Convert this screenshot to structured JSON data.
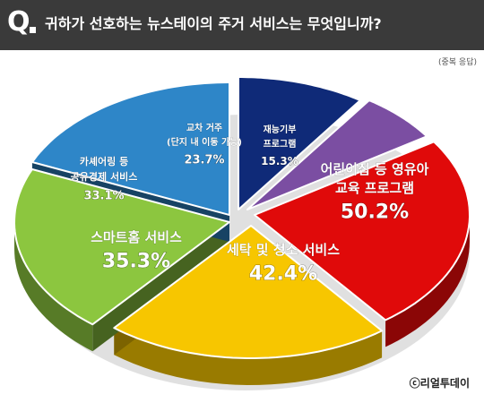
{
  "header": {
    "q_mark": "Q",
    "question": "귀하가 선호하는 뉴스테이의 주거 서비스는 무엇입니까?",
    "note": "(중복 응답)"
  },
  "credit": "ⓒ리얼투데이",
  "chart_data": {
    "type": "pie",
    "title": "귀하가 선호하는 뉴스테이의 주거 서비스는 무엇입니까?",
    "note": "(중복 응답)",
    "slices": [
      {
        "label": "교차 거주 (단지 내 이동 가능)",
        "value": 23.7,
        "value_label": "23.7%",
        "color": "#0f2a78",
        "label_color": "#ffffff"
      },
      {
        "label": "재능기부 프로그램",
        "value": 15.3,
        "value_label": "15.3%",
        "color": "#7b4ea2",
        "label_color": "#ffffff"
      },
      {
        "label": "어린이집 등 영유아 교육 프로그램",
        "value": 50.2,
        "value_label": "50.2%",
        "color": "#e00a0a",
        "label_color": "#ffffff"
      },
      {
        "label": "세탁 및 청소 서비스",
        "value": 42.4,
        "value_label": "42.4%",
        "color": "#f7c600",
        "label_color": "#ffffff"
      },
      {
        "label": "스마트홈 서비스",
        "value": 35.3,
        "value_label": "35.3%",
        "color": "#8cc63f",
        "label_color": "#ffffff"
      },
      {
        "label": "카셰어링 등 공유경제 서비스",
        "value": 33.1,
        "value_label": "33.1%",
        "color": "#2e86c8",
        "label_color": "#ffffff"
      }
    ],
    "legend": "none",
    "label_lines": [
      [
        "교차 거주",
        "(단지 내 이동 가능)"
      ],
      [
        "재능기부",
        "프로그램"
      ],
      [
        "어린이집 등 영유아",
        "교육 프로그램"
      ],
      [
        "세탁 및 청소 서비스"
      ],
      [
        "스마트홈 서비스"
      ],
      [
        "카셰어링 등",
        "공유경제 서비스"
      ]
    ]
  }
}
